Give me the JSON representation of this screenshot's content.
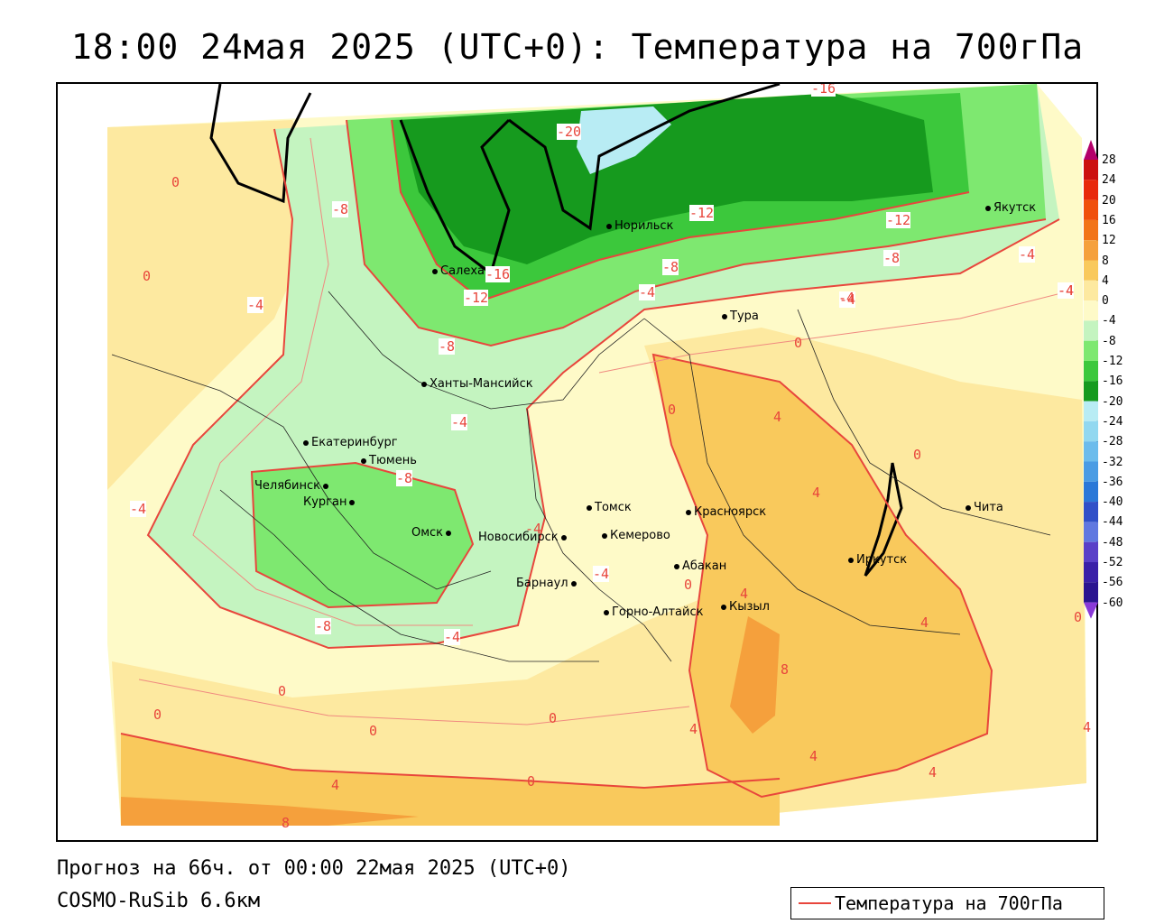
{
  "title": "18:00 24мая 2025 (UTC+0): Температура на 700гПа",
  "footer": {
    "forecast": "Прогноз на 66ч. от 00:00 22мая 2025 (UTC+0)",
    "model": "COSMO-RuSib 6.6км"
  },
  "legend": {
    "label": "Температура на 700гПа",
    "line_color": "#e8463c"
  },
  "colorbar": {
    "ticks": [
      "28",
      "24",
      "20",
      "16",
      "12",
      "8",
      "4",
      "0",
      "-4",
      "-8",
      "-12",
      "-16",
      "-20",
      "-24",
      "-28",
      "-32",
      "-36",
      "-40",
      "-44",
      "-48",
      "-52",
      "-56",
      "-60"
    ],
    "colors": [
      "#b4006a",
      "#cc1010",
      "#e8280c",
      "#f0500c",
      "#f27418",
      "#f5a03c",
      "#f9c95c",
      "#fde9a0",
      "#fefac8",
      "#c4f4c0",
      "#7ee870",
      "#3cc83c",
      "#169a1e",
      "#b8ecf4",
      "#92d8f0",
      "#6cbcec",
      "#4a9ce4",
      "#2a78d8",
      "#3050c8",
      "#6078e0",
      "#5a40c8",
      "#3a20a8",
      "#2a1490"
    ]
  },
  "cities": [
    {
      "name": "Норильск"
    },
    {
      "name": "Салехард"
    },
    {
      "name": "Тура"
    },
    {
      "name": "Якутск"
    },
    {
      "name": "Ханты-Мансийск"
    },
    {
      "name": "Екатеринбург"
    },
    {
      "name": "Тюмень"
    },
    {
      "name": "Челябинск"
    },
    {
      "name": "Курган"
    },
    {
      "name": "Омск"
    },
    {
      "name": "Томск"
    },
    {
      "name": "Новосибирск"
    },
    {
      "name": "Кемерово"
    },
    {
      "name": "Красноярск"
    },
    {
      "name": "Абакан"
    },
    {
      "name": "Барнаул"
    },
    {
      "name": "Горно-Алтайск"
    },
    {
      "name": "Кызыл"
    },
    {
      "name": "Иркутск"
    },
    {
      "name": "Чита"
    }
  ],
  "contour_labels": [
    "-16",
    "-20",
    "-16",
    "-12",
    "-12",
    "-8",
    "-8",
    "-8",
    "-4",
    "-4",
    "-4",
    "-4",
    "-8",
    "-12",
    "-8",
    "-4",
    "-4",
    "-4",
    "-4",
    "-8",
    "-4",
    "0",
    "0",
    "0",
    "0",
    "0",
    "0",
    "0",
    "0",
    "4",
    "4",
    "4",
    "4",
    "4",
    "4",
    "4",
    "4",
    "4",
    "8",
    "8",
    "0",
    "0",
    "-4",
    "-4",
    "-4",
    "0",
    "0"
  ]
}
